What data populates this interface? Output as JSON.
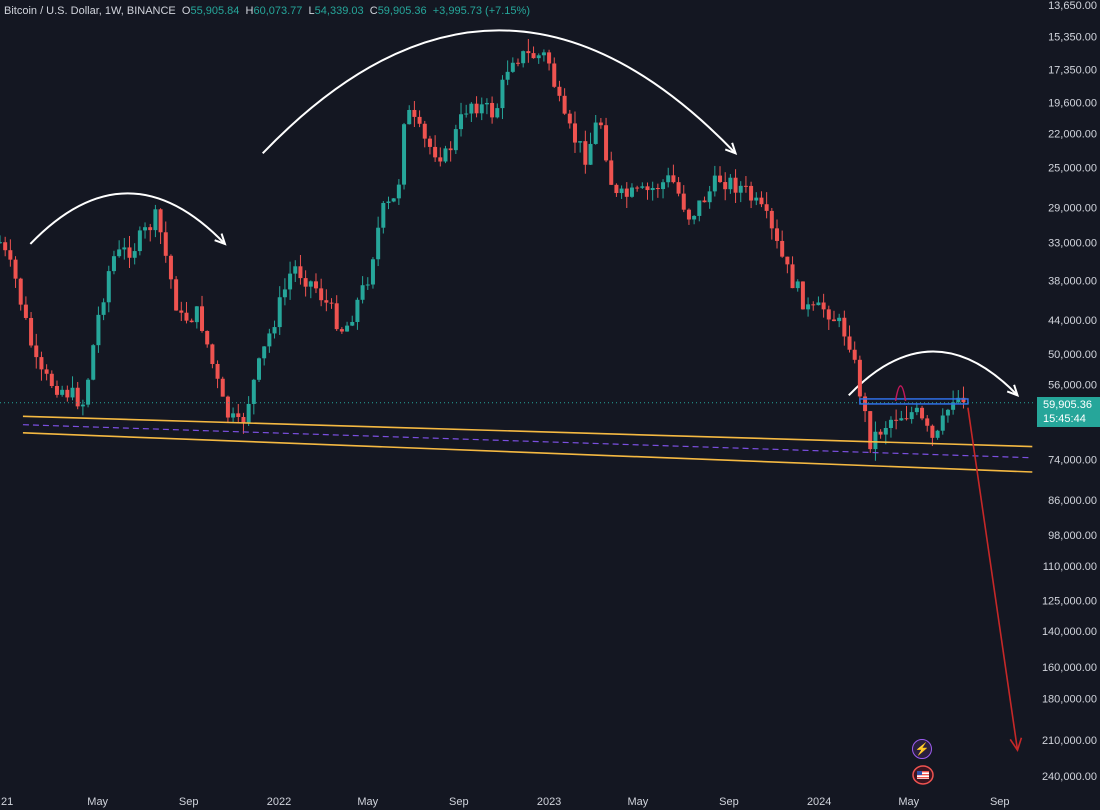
{
  "legend": {
    "symbol": "Bitcoin / U.S. Dollar, 1W, BINANCE",
    "open_key": "O",
    "open": "55,905.84",
    "high_key": "H",
    "high": "60,073.77",
    "low_key": "L",
    "low": "54,339.03",
    "close_key": "C",
    "close": "59,905.36",
    "change": "+3,995.73 (+7.15%)"
  },
  "price_tag": {
    "price": "59,905.36",
    "countdown": "15:45:44"
  },
  "colors": {
    "background": "#141722",
    "up": "#26a69a",
    "down": "#ef5350",
    "channel": "#f5b942",
    "channel_mid": "#7b4fe0",
    "neckline": "#2f6fe8",
    "arc": "#ffffff",
    "forecast": "#c62828",
    "text": "#d1d4dc"
  },
  "icons": {
    "indicator": "bolt-icon",
    "flag": "us-flag-icon"
  },
  "chart_data": {
    "type": "candlestick",
    "title": "",
    "xlabel": "",
    "ylabel": "",
    "y_scale": "log",
    "y_inverted": true,
    "ylim": [
      13650,
      240000
    ],
    "y_ticks": [
      "13,650.00",
      "15,350.00",
      "17,350.00",
      "19,600.00",
      "22,000.00",
      "25,000.00",
      "29,000.00",
      "33,000.00",
      "38,000.00",
      "44,000.00",
      "50,000.00",
      "56,000.00",
      "74,000.00",
      "86,000.00",
      "98,000.00",
      "110,000.00",
      "125,000.00",
      "140,000.00",
      "160,000.00",
      "180,000.00",
      "210,000.00",
      "240,000.00"
    ],
    "x_ticks": [
      {
        "label": "21",
        "date": "2021-01-01"
      },
      {
        "label": "May",
        "date": "2021-05-01"
      },
      {
        "label": "Sep",
        "date": "2021-09-01"
      },
      {
        "label": "2022",
        "date": "2022-01-01"
      },
      {
        "label": "May",
        "date": "2022-05-01"
      },
      {
        "label": "Sep",
        "date": "2022-09-01"
      },
      {
        "label": "2023",
        "date": "2023-01-01"
      },
      {
        "label": "May",
        "date": "2023-05-01"
      },
      {
        "label": "Sep",
        "date": "2023-09-01"
      },
      {
        "label": "2024",
        "date": "2024-01-01"
      },
      {
        "label": "May",
        "date": "2024-05-01"
      },
      {
        "label": "Sep",
        "date": "2024-09-01"
      }
    ],
    "xlim": [
      "2020-12-20",
      "2024-10-20"
    ],
    "close_path": [
      {
        "date": "2020-12-20",
        "close": 33000
      },
      {
        "date": "2021-01-10",
        "close": 38000
      },
      {
        "date": "2021-02-10",
        "close": 54000
      },
      {
        "date": "2021-03-15",
        "close": 57000
      },
      {
        "date": "2021-04-12",
        "close": 60000
      },
      {
        "date": "2021-05-01",
        "close": 44000
      },
      {
        "date": "2021-05-20",
        "close": 35000
      },
      {
        "date": "2021-06-20",
        "close": 33500
      },
      {
        "date": "2021-07-20",
        "close": 30000
      },
      {
        "date": "2021-08-20",
        "close": 44000
      },
      {
        "date": "2021-09-15",
        "close": 43000
      },
      {
        "date": "2021-10-20",
        "close": 62000
      },
      {
        "date": "2021-11-10",
        "close": 66000
      },
      {
        "date": "2021-11-25",
        "close": 57000
      },
      {
        "date": "2021-12-15",
        "close": 48000
      },
      {
        "date": "2022-01-20",
        "close": 36000
      },
      {
        "date": "2022-02-20",
        "close": 39000
      },
      {
        "date": "2022-03-30",
        "close": 46000
      },
      {
        "date": "2022-04-30",
        "close": 38000
      },
      {
        "date": "2022-05-20",
        "close": 29500
      },
      {
        "date": "2022-06-10",
        "close": 28000
      },
      {
        "date": "2022-06-20",
        "close": 20000
      },
      {
        "date": "2022-07-20",
        "close": 23000
      },
      {
        "date": "2022-08-15",
        "close": 24000
      },
      {
        "date": "2022-09-15",
        "close": 19500
      },
      {
        "date": "2022-10-20",
        "close": 20500
      },
      {
        "date": "2022-11-10",
        "close": 16500
      },
      {
        "date": "2022-12-30",
        "close": 16500
      },
      {
        "date": "2023-01-20",
        "close": 21000
      },
      {
        "date": "2023-02-20",
        "close": 24000
      },
      {
        "date": "2023-03-10",
        "close": 20500
      },
      {
        "date": "2023-03-30",
        "close": 28000
      },
      {
        "date": "2023-05-10",
        "close": 27500
      },
      {
        "date": "2023-06-15",
        "close": 26000
      },
      {
        "date": "2023-07-10",
        "close": 30000
      },
      {
        "date": "2023-08-20",
        "close": 26000
      },
      {
        "date": "2023-09-20",
        "close": 27000
      },
      {
        "date": "2023-10-20",
        "close": 30000
      },
      {
        "date": "2023-11-20",
        "close": 37000
      },
      {
        "date": "2023-12-20",
        "close": 43000
      },
      {
        "date": "2024-01-10",
        "close": 42000
      },
      {
        "date": "2024-02-10",
        "close": 47000
      },
      {
        "date": "2024-03-10",
        "close": 69000
      },
      {
        "date": "2024-04-10",
        "close": 63000
      },
      {
        "date": "2024-05-10",
        "close": 62000
      },
      {
        "date": "2024-06-05",
        "close": 70000
      },
      {
        "date": "2024-07-01",
        "close": 58000
      },
      {
        "date": "2024-07-15",
        "close": 59905.36
      }
    ],
    "annotations": {
      "channel_upper": [
        {
          "date": "2021-01-20",
          "price": 63000
        },
        {
          "date": "2024-10-15",
          "price": 70500
        }
      ],
      "channel_lower": [
        {
          "date": "2021-01-20",
          "price": 67000
        },
        {
          "date": "2024-10-15",
          "price": 77500
        }
      ],
      "channel_mid": [
        {
          "date": "2021-01-20",
          "price": 65000
        },
        {
          "date": "2024-10-15",
          "price": 73500
        }
      ],
      "neckline": {
        "from": "2024-02-25",
        "to": "2024-07-20",
        "price": 59500
      },
      "forecast_arrow": [
        {
          "date": "2024-07-20",
          "price": 61000
        },
        {
          "date": "2024-09-25",
          "price": 218000
        }
      ],
      "arcs": [
        {
          "from": "2021-01-30",
          "to": "2021-10-20",
          "peak": 27500
        },
        {
          "from": "2021-12-10",
          "to": "2023-09-10",
          "peak": 15000
        },
        {
          "from": "2024-02-10",
          "to": "2024-09-25",
          "peak": 49500
        }
      ]
    }
  }
}
